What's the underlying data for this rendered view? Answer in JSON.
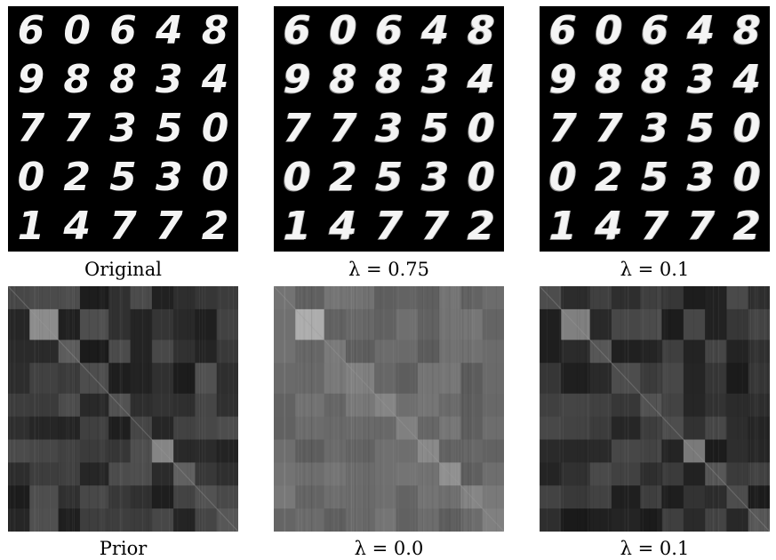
{
  "figure": {
    "top_row": [
      {
        "caption": "Original",
        "digits": [
          [
            "6",
            "0",
            "6",
            "4",
            "8"
          ],
          [
            "9",
            "8",
            "8",
            "3",
            "4"
          ],
          [
            "7",
            "7",
            "3",
            "5",
            "0"
          ],
          [
            "0",
            "2",
            "5",
            "3",
            "0"
          ],
          [
            "1",
            "4",
            "7",
            "7",
            "2"
          ]
        ]
      },
      {
        "caption": "λ = 0.75",
        "digits": [
          [
            "6",
            "0",
            "6",
            "4",
            "8"
          ],
          [
            "9",
            "8",
            "8",
            "3",
            "4"
          ],
          [
            "7",
            "7",
            "3",
            "5",
            "0"
          ],
          [
            "0",
            "2",
            "5",
            "3",
            "0"
          ],
          [
            "1",
            "4",
            "7",
            "7",
            "2"
          ]
        ]
      },
      {
        "caption": "λ = 0.1",
        "digits": [
          [
            "6",
            "0",
            "6",
            "4",
            "8"
          ],
          [
            "9",
            "8",
            "8",
            "3",
            "4"
          ],
          [
            "7",
            "7",
            "3",
            "5",
            "0"
          ],
          [
            "0",
            "2",
            "5",
            "3",
            "0"
          ],
          [
            "1",
            "4",
            "7",
            "7",
            "2"
          ]
        ]
      }
    ],
    "bottom_row": [
      {
        "caption": "Prior",
        "block_sizes": [
          3,
          4,
          3,
          4,
          3,
          3,
          3,
          3,
          3,
          3
        ],
        "diag_levels": [
          0.28,
          0.55,
          0.36,
          0.3,
          0.32,
          0.28,
          0.52,
          0.38,
          0.32,
          0.34
        ],
        "offdiag_range": [
          0.1,
          0.32
        ]
      },
      {
        "caption": "λ = 0.0",
        "block_sizes": [
          3,
          4,
          3,
          4,
          3,
          3,
          3,
          3,
          3,
          3
        ],
        "diag_levels": [
          0.45,
          0.68,
          0.48,
          0.5,
          0.52,
          0.5,
          0.54,
          0.56,
          0.52,
          0.5
        ],
        "offdiag_range": [
          0.36,
          0.48
        ]
      },
      {
        "caption": "λ = 0.1",
        "block_sizes": [
          3,
          4,
          3,
          4,
          3,
          3,
          3,
          3,
          3,
          3
        ],
        "diag_levels": [
          0.3,
          0.5,
          0.34,
          0.3,
          0.32,
          0.3,
          0.48,
          0.34,
          0.3,
          0.34
        ],
        "offdiag_range": [
          0.1,
          0.3
        ]
      }
    ]
  }
}
